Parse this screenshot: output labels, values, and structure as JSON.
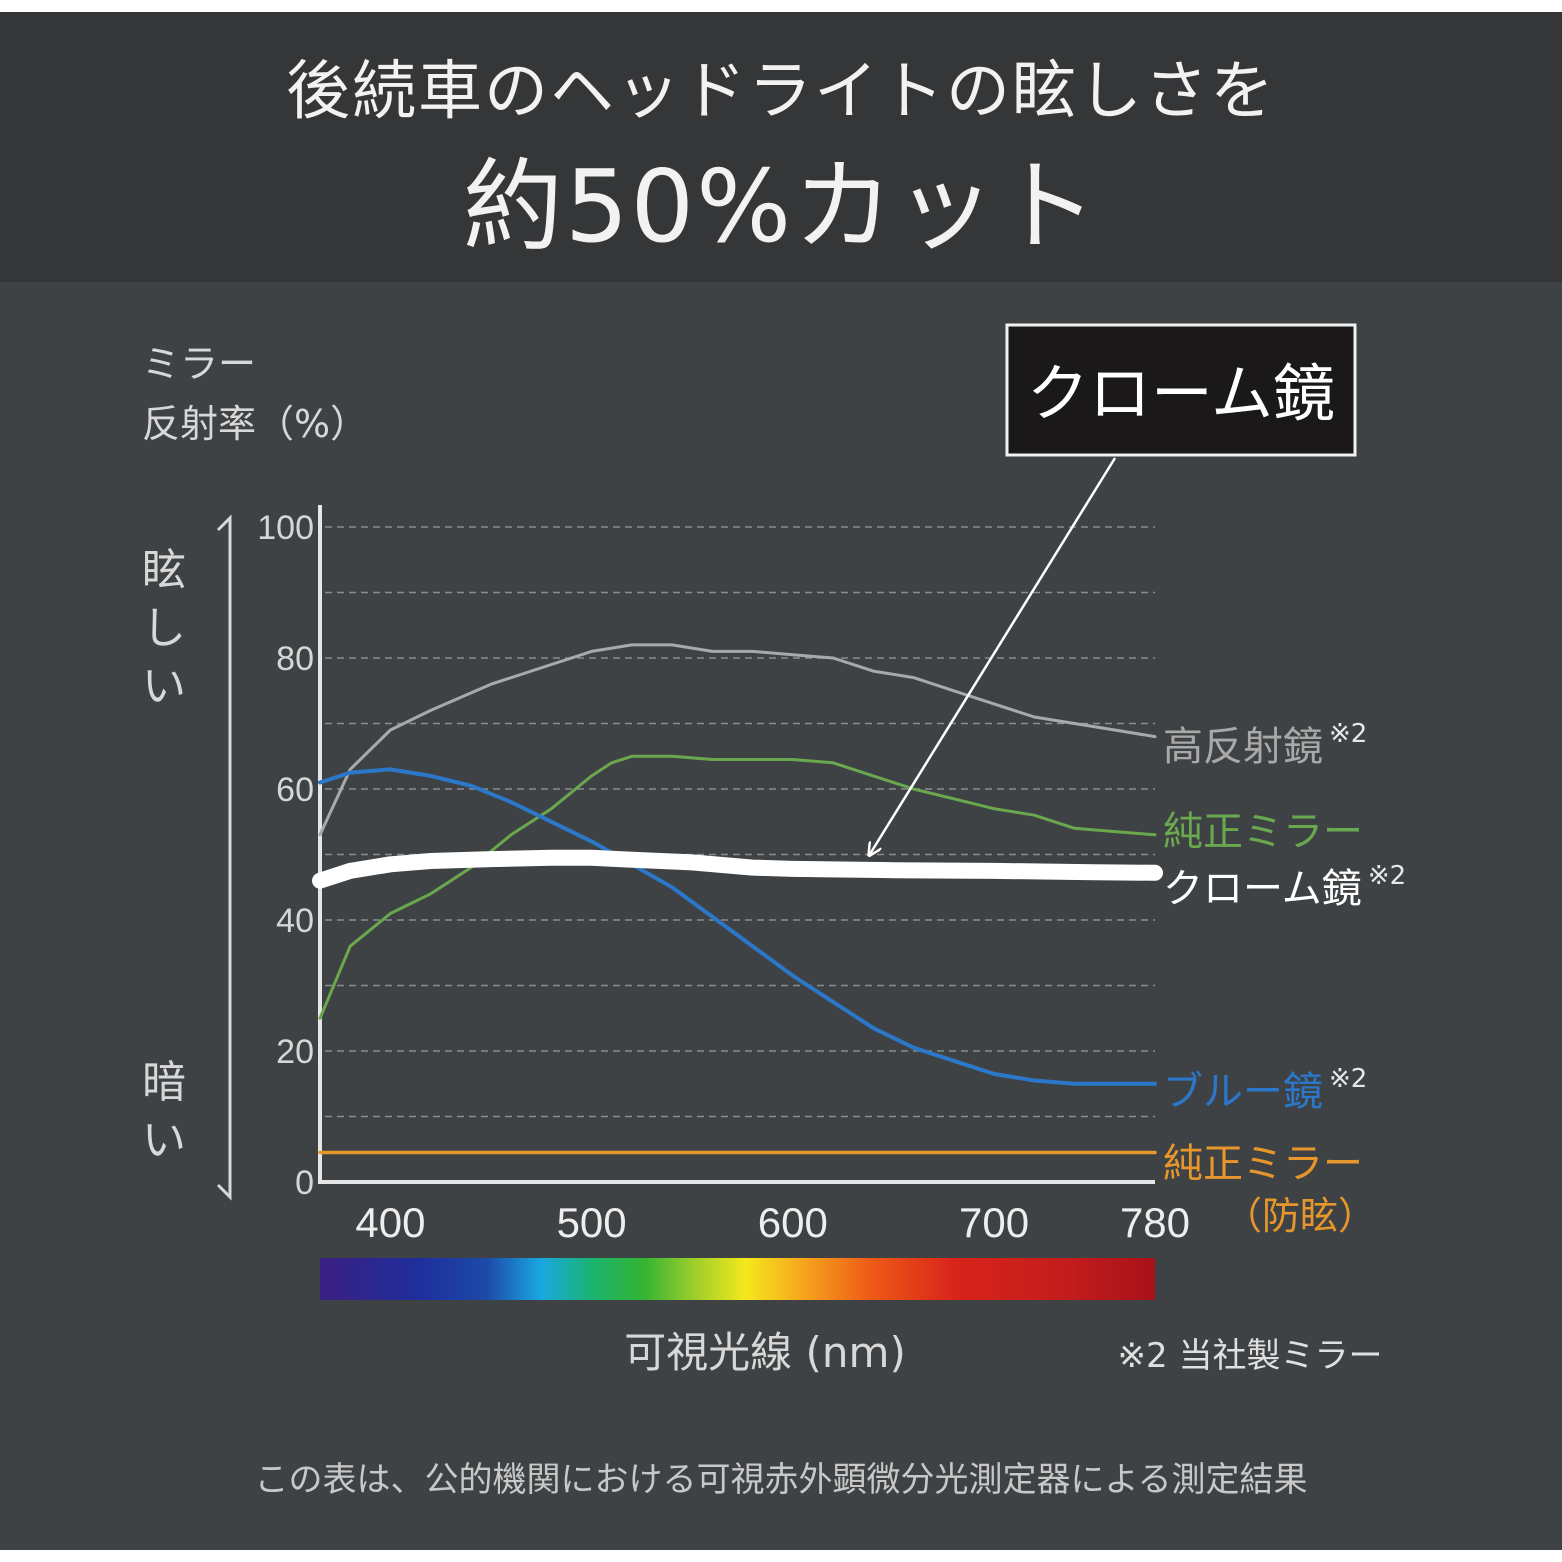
{
  "header": {
    "title_line1": "後続車のヘッドライトの眩しさを",
    "title_line2": "約50%カット"
  },
  "colors": {
    "high_reflection": "#a9a9a9",
    "genuine": "#6aa84f",
    "chrome": "#ffffff",
    "blue": "#2b77c9",
    "anti_glare": "#e7962b"
  },
  "chart_data": {
    "type": "line",
    "ylabel_line1": "ミラー",
    "ylabel_line2": "反射率（%）",
    "xlabel": "可視光線 (nm)",
    "xlim": [
      365,
      780
    ],
    "ylim": [
      0,
      100
    ],
    "y_ticks": [
      0,
      20,
      40,
      60,
      80,
      100
    ],
    "x_ticks": [
      400,
      500,
      600,
      700,
      780
    ],
    "grid": true,
    "scale_top": "眩しい",
    "scale_bottom": "暗い",
    "callout": "クローム鏡",
    "series": [
      {
        "key": "high_reflection",
        "name": "高反射鏡",
        "note": "※2",
        "x": [
          365,
          380,
          400,
          420,
          450,
          480,
          500,
          520,
          540,
          560,
          580,
          600,
          620,
          640,
          660,
          680,
          700,
          720,
          740,
          760,
          780
        ],
        "y": [
          53,
          63,
          69,
          72,
          76,
          79,
          81,
          82,
          82,
          81,
          81,
          80.5,
          80,
          78,
          77,
          75,
          73,
          71,
          70,
          69,
          68
        ]
      },
      {
        "key": "genuine",
        "name": "純正ミラー",
        "note": "",
        "x": [
          365,
          380,
          400,
          420,
          440,
          460,
          480,
          500,
          510,
          520,
          540,
          560,
          580,
          600,
          620,
          640,
          660,
          680,
          700,
          720,
          740,
          760,
          780
        ],
        "y": [
          25,
          36,
          41,
          44,
          48,
          53,
          57,
          62,
          64,
          65,
          65,
          64.5,
          64.5,
          64.5,
          64,
          62,
          60,
          58.5,
          57,
          56,
          54,
          53.5,
          53
        ]
      },
      {
        "key": "chrome",
        "name": "クローム鏡",
        "note": "※2",
        "x": [
          365,
          380,
          400,
          420,
          450,
          480,
          500,
          520,
          550,
          580,
          600,
          650,
          700,
          750,
          780
        ],
        "y": [
          46,
          47.5,
          48.5,
          49,
          49.3,
          49.5,
          49.5,
          49.2,
          48.8,
          48,
          47.8,
          47.6,
          47.5,
          47.3,
          47.2
        ]
      },
      {
        "key": "blue",
        "name": "ブルー鏡",
        "note": "※2",
        "x": [
          365,
          380,
          400,
          420,
          440,
          460,
          480,
          500,
          520,
          540,
          560,
          580,
          600,
          620,
          640,
          660,
          680,
          700,
          720,
          740,
          760,
          780
        ],
        "y": [
          61,
          62.5,
          63,
          62,
          60.5,
          58,
          55,
          52,
          48.5,
          45,
          40.5,
          36,
          31.5,
          27.5,
          23.5,
          20.5,
          18.5,
          16.5,
          15.5,
          15,
          15,
          15
        ]
      },
      {
        "key": "anti_glare",
        "name": "純正ミラー",
        "name_line2": "（防眩）",
        "note": "",
        "x": [
          365,
          780
        ],
        "y": [
          4.5,
          4.5
        ]
      }
    ]
  },
  "legend_note": "※2 当社製ミラー",
  "footnote": "この表は、公的機関における可視赤外顕微分光測定器による測定結果"
}
